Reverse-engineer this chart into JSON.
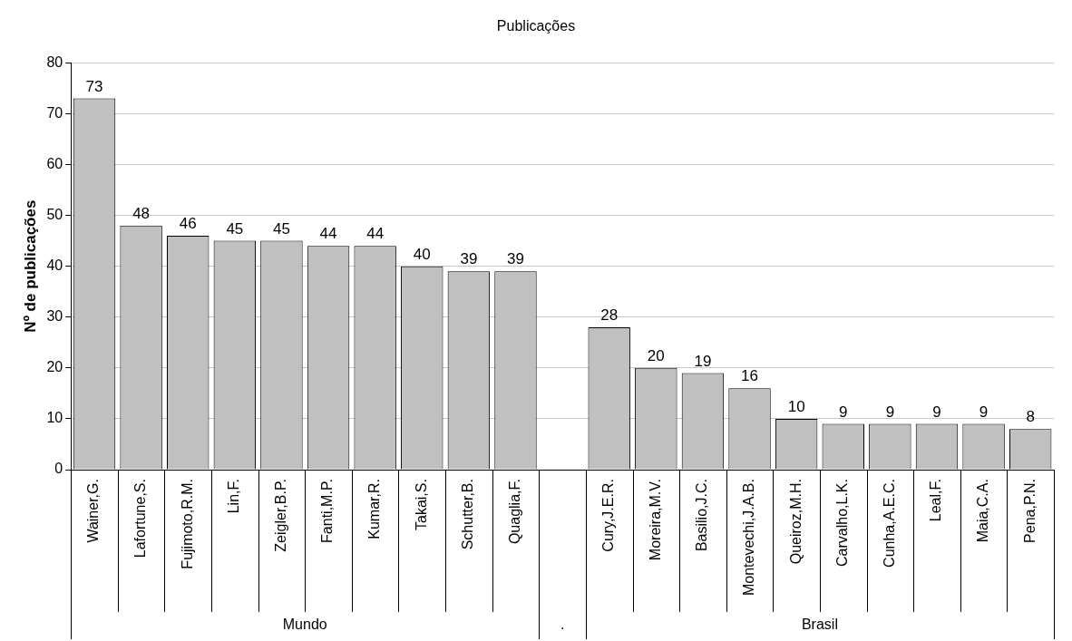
{
  "chart_data": {
    "type": "bar",
    "title": "Publicações",
    "ylabel": "Nº de publicações",
    "categories": [
      "Wainer,G.",
      "Lafortune,S.",
      "Fujimoto,R.M.",
      "Lin,F.",
      "Zeigler,B.P.",
      "Fanti,M.P.",
      "Kumar,R.",
      "Takai,S.",
      "Schutter,B.",
      "Quaglia,F.",
      null,
      "Cury,J.E.R.",
      "Moreira,M.V.",
      "Basilio,J.C.",
      "Montevechi,J.A.B.",
      "Queiroz,M.H.",
      "Carvalho,L.K.",
      "Cunha,A.E.C.",
      "Leal,F.",
      "Maia,C.A.",
      "Pena,P.N."
    ],
    "values": [
      73,
      48,
      46,
      45,
      45,
      44,
      44,
      40,
      39,
      39,
      null,
      28,
      20,
      19,
      16,
      10,
      9,
      9,
      9,
      9,
      8
    ],
    "color": "#c0c0c0",
    "ylim": [
      0,
      80
    ],
    "yticks": [
      0,
      10,
      20,
      30,
      40,
      50,
      60,
      70,
      80
    ],
    "grid": "y",
    "legend": false,
    "data_labels": true,
    "annotations": [
      "Mundo",
      ".",
      "Brasil"
    ]
  }
}
